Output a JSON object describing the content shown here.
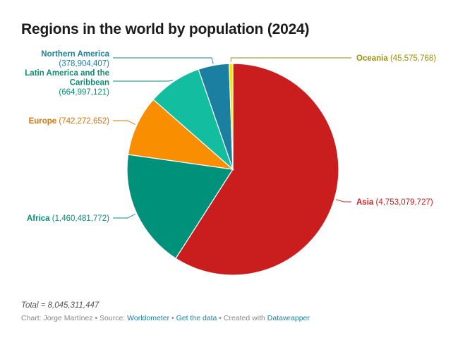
{
  "chart_data": {
    "type": "pie",
    "title": "Regions in the world by population (2024)",
    "categories": [
      "Asia",
      "Africa",
      "Europe",
      "Latin America and the Caribbean",
      "Northern America",
      "Oceania"
    ],
    "values": [
      4753079727,
      1460481772,
      742272652,
      664997121,
      378904407,
      45575768
    ],
    "value_labels": [
      "(4,753,079,727)",
      "(1,460,481,772)",
      "(742,272,652)",
      "(664,997,121)",
      "(378,904,407)",
      "(45,575,768)"
    ],
    "colors": [
      "#c91d1e",
      "#00917a",
      "#f98f00",
      "#13bea0",
      "#1a7fa0",
      "#f5e500"
    ],
    "label_colors": [
      "#c91d1e",
      "#00917a",
      "#d4740b",
      "#0e8e73",
      "#1a7fa0",
      "#9e8e10"
    ]
  },
  "total": "Total = 8,045,311,447",
  "footer": {
    "prefix": "Chart: Jorge Martínez • Source: ",
    "source": "Worldometer",
    "sep1": " • ",
    "get_data": "Get the data",
    "sep2": " • Created with ",
    "tool": "Datawrapper"
  }
}
